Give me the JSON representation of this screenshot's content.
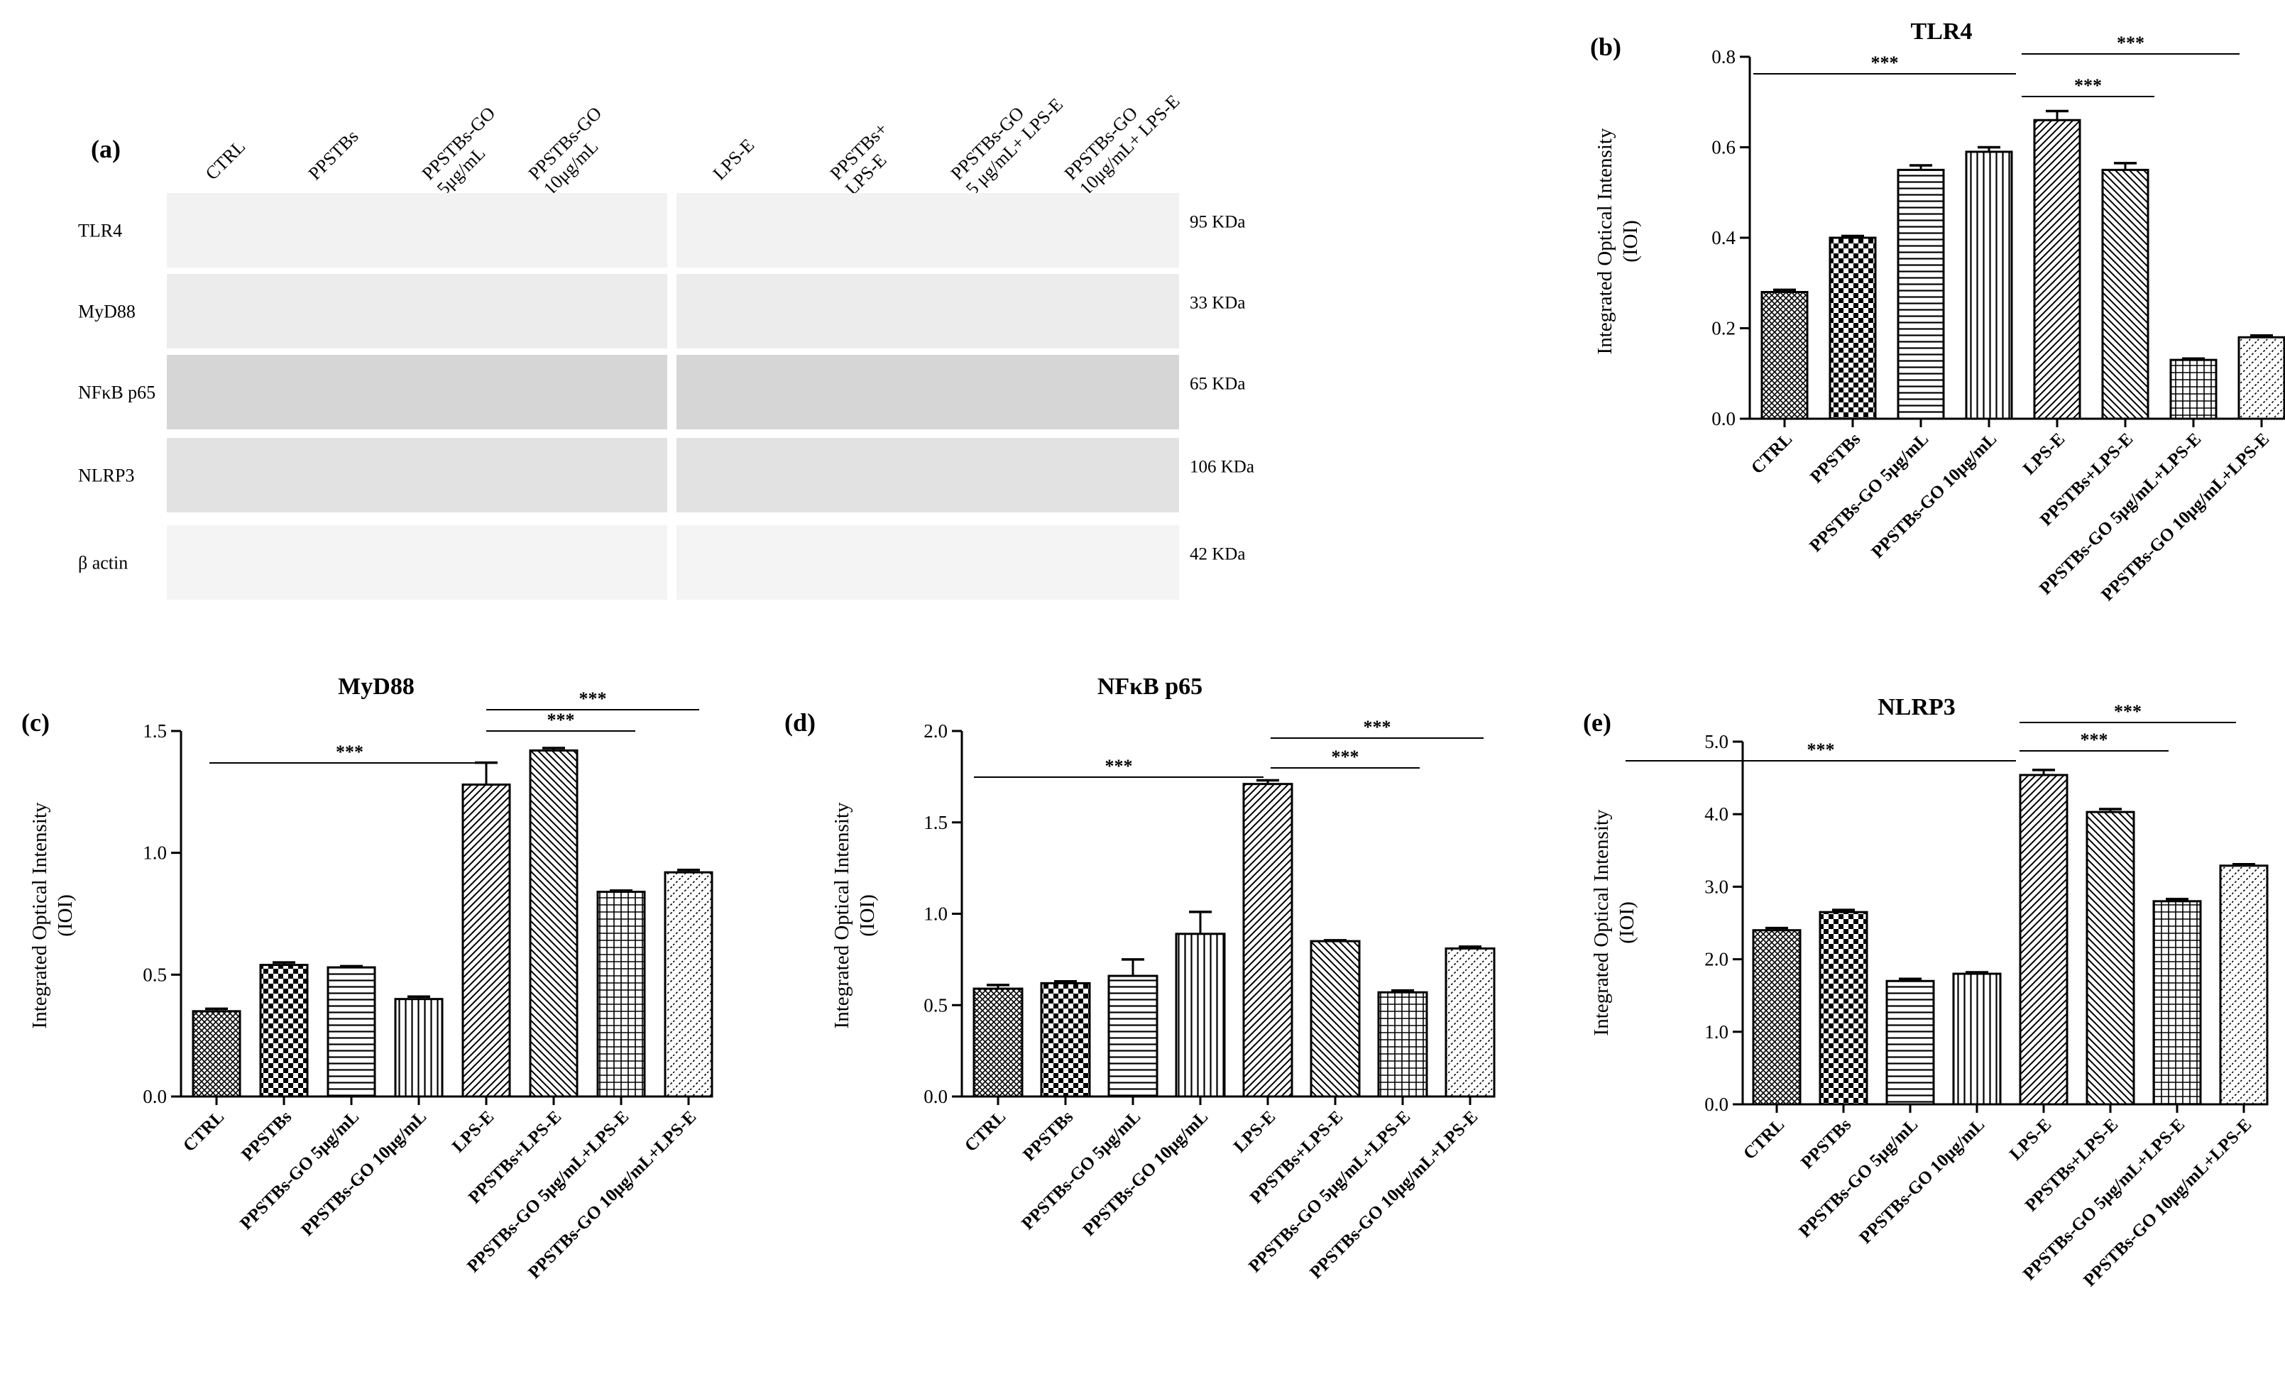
{
  "blot": {
    "panel_label": "(a)",
    "lanes": [
      "CTRL",
      "PPSTBs",
      "PPSTBs-GO\n5μg/mL",
      "PPSTBs-GO\n10μg/mL",
      "LPS-E",
      "PPSTBs+\nLPS-E",
      "PPSTBs-GO\n5 μg/mL+ LPS-E",
      "PPSTBs-GO\n10μg/mL+ LPS-E"
    ],
    "proteins": [
      {
        "name": "TLR4",
        "size": "95 KDa"
      },
      {
        "name": "MyD88",
        "size": "33 KDa"
      },
      {
        "name": "NFκB p65",
        "size": "65 KDa"
      },
      {
        "name": "NLRP3",
        "size": "106 KDa"
      },
      {
        "name": "β actin",
        "size": "42 KDa"
      }
    ]
  },
  "chart_data": [
    {
      "type": "bar",
      "panel_label": "(b)",
      "title": "TLR4",
      "ylabel": "Integrated  Optical Intensity\n(IOI)",
      "categories": [
        "CTRL",
        "PPSTBs",
        "PPSTBs-GO 5μg/mL",
        "PPSTBs-GO 10μg/mL",
        "LPS-E",
        "PPSTBs+LPS-E",
        "PPSTBs-GO 5μg/mL+LPS-E",
        "PPSTBs-GO 10μg/mL+LPS-E"
      ],
      "values": [
        0.28,
        0.4,
        0.55,
        0.59,
        0.66,
        0.55,
        0.13,
        0.18
      ],
      "errors": [
        0.005,
        0.004,
        0.01,
        0.01,
        0.02,
        0.015,
        0.003,
        0.004
      ],
      "ylim": [
        0,
        0.8
      ],
      "yticks": [
        "0.0",
        "0.2",
        "0.4",
        "0.6",
        "0.8"
      ],
      "significance": [
        {
          "from": 0,
          "to": 4,
          "label": "***"
        },
        {
          "from": 4,
          "to": 6,
          "label": "***"
        },
        {
          "from": 4,
          "to": 7,
          "label": "***"
        }
      ]
    },
    {
      "type": "bar",
      "panel_label": "(c)",
      "title": "MyD88",
      "ylabel": "Integrated  Optical Intensity\n(IOI)",
      "categories": [
        "CTRL",
        "PPSTBs",
        "PPSTBs-GO 5μg/mL",
        "PPSTBs-GO 10μg/mL",
        "LPS-E",
        "PPSTBs+LPS-E",
        "PPSTBs-GO 5μg/mL+LPS-E",
        "PPSTBs-GO 10μg/mL+LPS-E"
      ],
      "values": [
        0.35,
        0.54,
        0.53,
        0.4,
        1.28,
        1.42,
        0.84,
        0.92
      ],
      "errors": [
        0.01,
        0.01,
        0.005,
        0.01,
        0.09,
        0.01,
        0.005,
        0.01
      ],
      "ylim": [
        0,
        1.5
      ],
      "yticks": [
        "0.0",
        "0.5",
        "1.0",
        "1.5"
      ],
      "significance": [
        {
          "from": 0,
          "to": 4,
          "label": "***"
        },
        {
          "from": 4,
          "to": 6,
          "label": "***"
        },
        {
          "from": 4,
          "to": 7,
          "label": "***"
        }
      ]
    },
    {
      "type": "bar",
      "panel_label": "(d)",
      "title": "NFκB p65",
      "ylabel": "Integrated  Optical Intensity\n(IOI)",
      "categories": [
        "CTRL",
        "PPSTBs",
        "PPSTBs-GO 5μg/mL",
        "PPSTBs-GO 10μg/mL",
        "LPS-E",
        "PPSTBs+LPS-E",
        "PPSTBs-GO 5μg/mL+LPS-E",
        "PPSTBs-GO 10μg/mL+LPS-E"
      ],
      "values": [
        0.59,
        0.62,
        0.66,
        0.89,
        1.71,
        0.85,
        0.57,
        0.81
      ],
      "errors": [
        0.02,
        0.01,
        0.09,
        0.12,
        0.02,
        0.005,
        0.01,
        0.01
      ],
      "ylim": [
        0,
        2.0
      ],
      "yticks": [
        "0.0",
        "0.5",
        "1.0",
        "1.5",
        "2.0"
      ],
      "significance": [
        {
          "from": 0,
          "to": 4,
          "label": "***"
        },
        {
          "from": 4,
          "to": 6,
          "label": "***"
        },
        {
          "from": 4,
          "to": 7,
          "label": "***"
        }
      ]
    },
    {
      "type": "bar",
      "panel_label": "(e)",
      "title": "NLRP3",
      "ylabel": "Integrated  Optical Intensity\n(IOI)",
      "categories": [
        "CTRL",
        "PPSTBs",
        "PPSTBs-GO 5μg/mL",
        "PPSTBs-GO 10μg/mL",
        "LPS-E",
        "PPSTBs+LPS-E",
        "PPSTBs-GO 5μg/mL+LPS-E",
        "PPSTBs-GO 10μg/mL+LPS-E"
      ],
      "values": [
        2.4,
        2.65,
        1.7,
        1.8,
        4.54,
        4.03,
        2.8,
        3.29
      ],
      "errors": [
        0.03,
        0.03,
        0.03,
        0.02,
        0.07,
        0.04,
        0.03,
        0.02
      ],
      "ylim": [
        0,
        5.0
      ],
      "yticks": [
        "0.0",
        "1.0",
        "2.0",
        "3.0",
        "4.0",
        "5.0"
      ],
      "significance": [
        {
          "from": 0,
          "to": 4,
          "label": "***"
        },
        {
          "from": 4,
          "to": 6,
          "label": "***"
        },
        {
          "from": 4,
          "to": 7,
          "label": "***"
        }
      ]
    }
  ]
}
